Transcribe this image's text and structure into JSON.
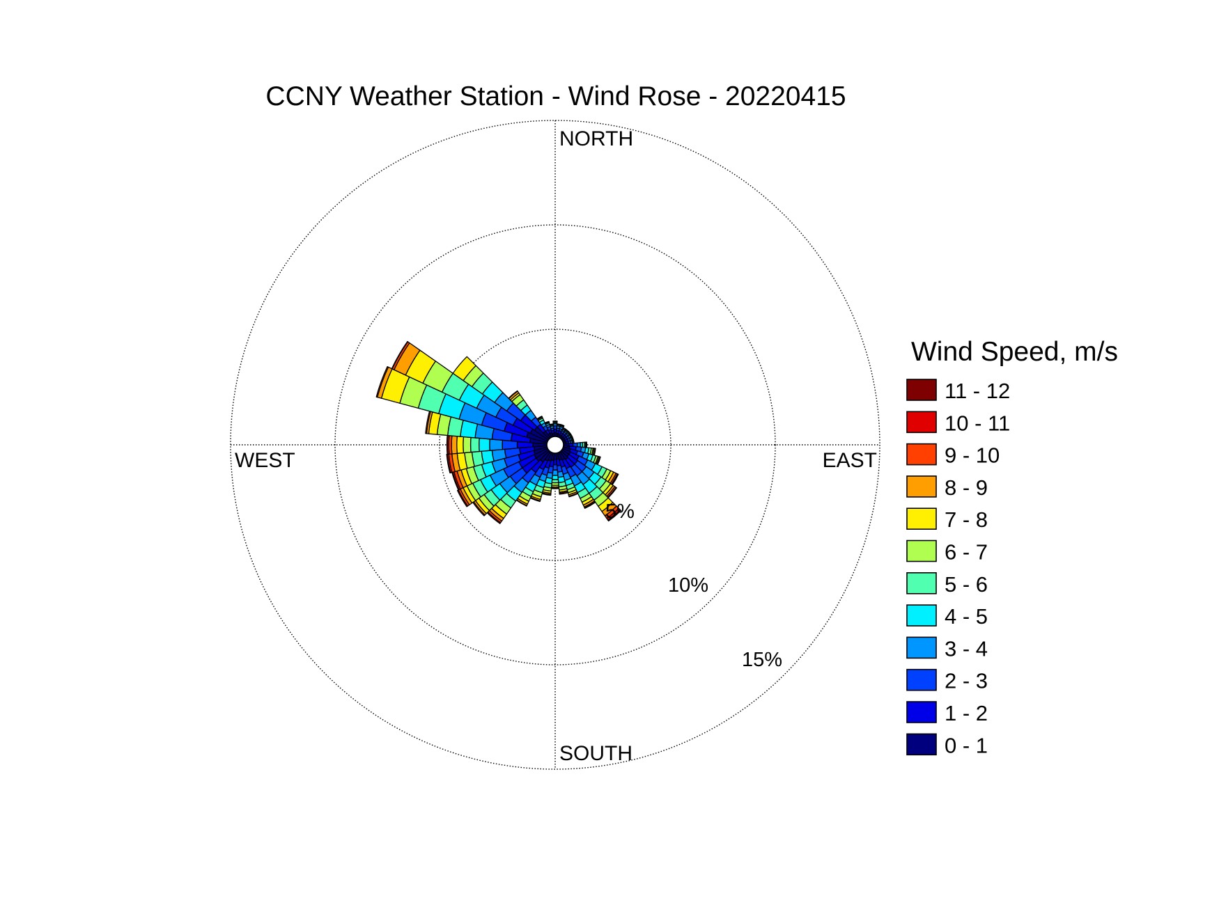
{
  "chart_data": {
    "type": "wind-rose",
    "title": "CCNY Weather Station - Wind Rose - 20220415",
    "compass_labels": {
      "north": "NORTH",
      "south": "SOUTH",
      "east": "EAST",
      "west": "WEST"
    },
    "radial_ticks": [
      {
        "value": 5,
        "label": "5%"
      },
      {
        "value": 10,
        "label": "10%"
      },
      {
        "value": 15,
        "label": "15%"
      }
    ],
    "radial_range": [
      0,
      15
    ],
    "grid": true,
    "legend": {
      "title": "Wind Speed, m/s",
      "placement": "right",
      "entries": [
        "11 - 12",
        "10 - 11",
        "9 - 10",
        "8 - 9",
        "7 - 8",
        "6 - 7",
        "5 - 6",
        "4 - 5",
        "3 - 4",
        "2 - 3",
        "1 - 2",
        "0 - 1"
      ]
    },
    "speed_bin_colors": [
      "#00007f",
      "#0000e8",
      "#0040ff",
      "#0096ff",
      "#00f0ff",
      "#50ffb0",
      "#b0ff50",
      "#ffef00",
      "#ff9e00",
      "#ff4000",
      "#e00000",
      "#7f0000"
    ],
    "direction_sectors_deg": [
      0,
      10,
      20,
      30,
      40,
      50,
      60,
      70,
      80,
      90,
      100,
      110,
      120,
      130,
      140,
      150,
      160,
      170,
      180,
      190,
      200,
      210,
      220,
      230,
      240,
      250,
      260,
      270,
      280,
      290,
      300,
      310,
      320,
      330,
      340,
      350
    ],
    "cumulative_frequency_percent": [
      [
        0.2,
        0.35,
        0.5,
        0.6,
        0.65,
        0.7,
        0.72,
        0.73,
        0.73,
        0.73,
        0.73,
        0.73
      ],
      [
        0.15,
        0.3,
        0.4,
        0.5,
        0.55,
        0.58,
        0.6,
        0.6,
        0.6,
        0.6,
        0.6,
        0.6
      ],
      [
        0.15,
        0.3,
        0.4,
        0.5,
        0.55,
        0.58,
        0.6,
        0.6,
        0.6,
        0.6,
        0.6,
        0.6
      ],
      [
        0.12,
        0.25,
        0.35,
        0.42,
        0.47,
        0.5,
        0.5,
        0.5,
        0.5,
        0.5,
        0.5,
        0.5
      ],
      [
        0.12,
        0.25,
        0.35,
        0.42,
        0.47,
        0.5,
        0.5,
        0.5,
        0.5,
        0.5,
        0.5,
        0.5
      ],
      [
        0.12,
        0.25,
        0.35,
        0.42,
        0.47,
        0.5,
        0.5,
        0.5,
        0.5,
        0.5,
        0.5,
        0.5
      ],
      [
        0.12,
        0.25,
        0.35,
        0.42,
        0.47,
        0.5,
        0.5,
        0.5,
        0.5,
        0.5,
        0.5,
        0.5
      ],
      [
        0.12,
        0.25,
        0.35,
        0.42,
        0.47,
        0.5,
        0.5,
        0.5,
        0.5,
        0.5,
        0.5,
        0.5
      ],
      [
        0.12,
        0.25,
        0.35,
        0.42,
        0.47,
        0.5,
        0.5,
        0.5,
        0.5,
        0.5,
        0.5,
        0.5
      ],
      [
        0.25,
        0.45,
        0.65,
        0.8,
        0.9,
        1.0,
        1.05,
        1.08,
        1.1,
        1.1,
        1.1,
        1.1
      ],
      [
        0.3,
        0.6,
        0.85,
        1.05,
        1.2,
        1.32,
        1.4,
        1.45,
        1.5,
        1.52,
        1.52,
        1.52
      ],
      [
        0.35,
        0.7,
        1.0,
        1.25,
        1.45,
        1.6,
        1.7,
        1.75,
        1.8,
        1.82,
        1.82,
        1.82
      ],
      [
        0.4,
        0.85,
        1.3,
        1.7,
        2.05,
        2.3,
        2.5,
        2.65,
        2.78,
        2.85,
        2.88,
        2.9
      ],
      [
        0.4,
        0.9,
        1.4,
        1.85,
        2.25,
        2.55,
        2.8,
        2.95,
        3.05,
        3.12,
        3.15,
        3.15
      ],
      [
        0.45,
        0.9,
        1.4,
        1.9,
        2.4,
        2.8,
        3.15,
        3.45,
        3.7,
        3.85,
        3.95,
        4.0
      ],
      [
        0.4,
        0.85,
        1.3,
        1.75,
        2.1,
        2.4,
        2.6,
        2.75,
        2.85,
        2.9,
        2.92,
        2.92
      ],
      [
        0.35,
        0.7,
        1.05,
        1.35,
        1.6,
        1.8,
        1.95,
        2.05,
        2.12,
        2.15,
        2.15,
        2.15
      ],
      [
        0.3,
        0.6,
        0.9,
        1.15,
        1.4,
        1.6,
        1.75,
        1.85,
        1.9,
        1.95,
        1.95,
        1.95
      ],
      [
        0.3,
        0.55,
        0.8,
        1.05,
        1.25,
        1.4,
        1.52,
        1.6,
        1.65,
        1.68,
        1.68,
        1.68
      ],
      [
        0.35,
        0.65,
        0.95,
        1.2,
        1.45,
        1.65,
        1.8,
        1.9,
        1.96,
        2.0,
        2.0,
        2.0
      ],
      [
        0.4,
        0.75,
        1.1,
        1.4,
        1.7,
        1.95,
        2.15,
        2.28,
        2.35,
        2.38,
        2.38,
        2.38
      ],
      [
        0.45,
        0.9,
        1.3,
        1.7,
        2.05,
        2.3,
        2.55,
        2.7,
        2.78,
        2.8,
        2.8,
        2.8
      ],
      [
        0.6,
        1.2,
        1.8,
        2.35,
        2.85,
        3.25,
        3.6,
        3.85,
        4.0,
        4.1,
        4.15,
        4.15
      ],
      [
        0.7,
        1.5,
        2.2,
        2.8,
        3.3,
        3.7,
        4.0,
        4.2,
        4.3,
        4.35,
        4.35,
        4.35
      ],
      [
        0.7,
        1.5,
        2.3,
        3.0,
        3.5,
        3.9,
        4.2,
        4.4,
        4.55,
        4.65,
        4.7,
        4.7
      ],
      [
        0.65,
        1.4,
        2.1,
        2.7,
        3.2,
        3.6,
        3.95,
        4.2,
        4.4,
        4.55,
        4.62,
        4.65
      ],
      [
        0.6,
        1.3,
        2.0,
        2.6,
        3.1,
        3.55,
        3.9,
        4.25,
        4.5,
        4.65,
        4.72,
        4.75
      ],
      [
        0.65,
        1.4,
        2.1,
        2.7,
        3.2,
        3.6,
        3.95,
        4.25,
        4.5,
        4.63,
        4.7,
        4.72
      ],
      [
        0.8,
        1.7,
        2.6,
        3.4,
        4.1,
        4.7,
        5.2,
        5.6,
        5.7,
        5.75,
        5.75,
        5.75
      ],
      [
        1.0,
        2.1,
        3.2,
        4.3,
        5.3,
        6.3,
        7.2,
        8.1,
        8.3,
        8.35,
        8.35,
        8.35
      ],
      [
        0.9,
        1.8,
        2.7,
        3.7,
        4.6,
        5.5,
        6.5,
        7.4,
        8.0,
        8.1,
        8.12,
        8.12
      ],
      [
        0.8,
        1.6,
        2.4,
        3.1,
        3.8,
        4.4,
        4.9,
        5.5,
        5.5,
        5.5,
        5.5,
        5.5
      ],
      [
        0.4,
        0.8,
        1.2,
        1.6,
        1.9,
        2.2,
        2.5,
        2.6,
        2.7,
        2.72,
        2.72,
        2.72
      ],
      [
        0.2,
        0.4,
        0.6,
        0.75,
        0.9,
        1.0,
        1.05,
        1.08,
        1.1,
        1.1,
        1.1,
        1.1
      ],
      [
        0.2,
        0.35,
        0.5,
        0.6,
        0.68,
        0.72,
        0.75,
        0.75,
        0.75,
        0.75,
        0.75,
        0.75
      ],
      [
        0.15,
        0.3,
        0.4,
        0.5,
        0.55,
        0.58,
        0.6,
        0.6,
        0.6,
        0.6,
        0.6,
        0.6
      ]
    ]
  }
}
